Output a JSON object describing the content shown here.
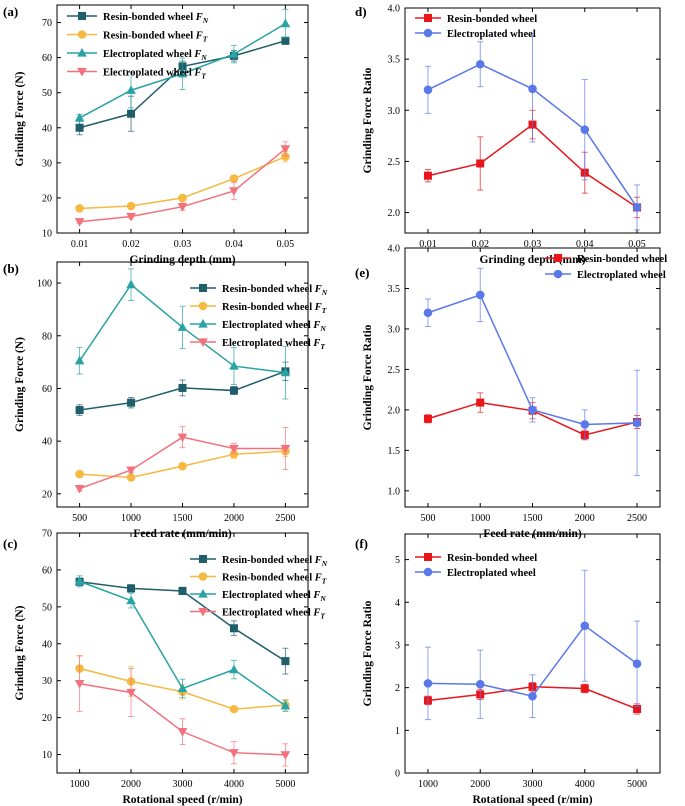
{
  "figure": {
    "colors": {
      "resin_normal": "#1f5f6b",
      "resin_tangential": "#f6b941",
      "electro_normal": "#29a3a3",
      "electro_tangential": "#f2717d",
      "resin_ratio": "#e8161b",
      "electro_ratio": "#5a78ea"
    }
  },
  "chart_data": [
    {
      "id": "a",
      "panel_label": "(a)",
      "type": "line",
      "xlabel": "Grinding depth (mm)",
      "ylabel": "Grinding Force (N)",
      "x": [
        0.01,
        0.02,
        0.03,
        0.04,
        0.05
      ],
      "x_tick_labels": [
        "0.01",
        "0.02",
        "0.03",
        "0.04",
        "0.05"
      ],
      "ylim": [
        10,
        75
      ],
      "y_ticks": [
        10,
        20,
        30,
        40,
        50,
        60,
        70
      ],
      "legend_position": "top-left",
      "series": [
        {
          "name": "Resin-bonded wheel",
          "sub": "N",
          "marker": "square",
          "color_key": "resin_normal",
          "values": [
            40,
            44,
            57.5,
            60.5,
            64.8
          ],
          "errors": [
            2,
            5,
            1.5,
            1.5,
            1
          ]
        },
        {
          "name": "Resin-bonded wheel",
          "sub": "T",
          "marker": "circle",
          "color_key": "resin_tangential",
          "values": [
            17,
            17.7,
            20,
            25.5,
            31.8
          ],
          "errors": [
            0.5,
            0.5,
            0.8,
            1,
            1.5
          ]
        },
        {
          "name": "Electroplated wheel",
          "sub": "N",
          "marker": "triangle-up",
          "color_key": "electro_normal",
          "values": [
            42.8,
            50.7,
            55.4,
            61,
            69.7
          ],
          "errors": [
            1,
            5,
            4.5,
            2.5,
            4
          ]
        },
        {
          "name": "Electroplated wheel",
          "sub": "T",
          "marker": "triangle-down",
          "color_key": "electro_tangential",
          "values": [
            13.2,
            14.7,
            17.5,
            22,
            34
          ],
          "errors": [
            0.5,
            0.5,
            1,
            2.5,
            2
          ]
        }
      ]
    },
    {
      "id": "b",
      "panel_label": "(b)",
      "type": "line",
      "xlabel": "Feed rate (mm/min)",
      "ylabel": "Grinding Force (N)",
      "x": [
        500,
        1000,
        1500,
        2000,
        2500
      ],
      "x_tick_labels": [
        "500",
        "1000",
        "1500",
        "2000",
        "2500"
      ],
      "ylim": [
        15,
        108
      ],
      "y_ticks": [
        20,
        40,
        60,
        80,
        100
      ],
      "legend_position": "top-right",
      "series": [
        {
          "name": "Resin-bonded wheel",
          "sub": "N",
          "marker": "square",
          "color_key": "resin_normal",
          "values": [
            51.8,
            54.6,
            60.2,
            59.2,
            66.5
          ],
          "errors": [
            2,
            2,
            3,
            1.5,
            3.5
          ]
        },
        {
          "name": "Resin-bonded wheel",
          "sub": "T",
          "marker": "circle",
          "color_key": "resin_tangential",
          "values": [
            27.5,
            26.2,
            30.5,
            35,
            36.2
          ],
          "errors": [
            1,
            1,
            1,
            1.5,
            2
          ]
        },
        {
          "name": "Electroplated wheel",
          "sub": "N",
          "marker": "triangle-up",
          "color_key": "electro_normal",
          "values": [
            70.5,
            99.4,
            83.2,
            68.5,
            66
          ],
          "errors": [
            5,
            6,
            8,
            7,
            10
          ]
        },
        {
          "name": "Electroplated wheel",
          "sub": "T",
          "marker": "triangle-down",
          "color_key": "electro_tangential",
          "values": [
            22,
            29,
            41.5,
            37.2,
            37.2
          ],
          "errors": [
            1,
            1,
            4,
            2,
            8
          ]
        }
      ]
    },
    {
      "id": "c",
      "panel_label": "(c)",
      "type": "line",
      "xlabel": "Rotational speed (r/min)",
      "ylabel": "Grinding Force (N)",
      "x": [
        1000,
        2000,
        3000,
        4000,
        5000
      ],
      "x_tick_labels": [
        "1000",
        "2000",
        "3000",
        "4000",
        "5000"
      ],
      "ylim": [
        5,
        70
      ],
      "y_ticks": [
        10,
        20,
        30,
        40,
        50,
        60,
        70
      ],
      "legend_position": "top-right",
      "series": [
        {
          "name": "Resin-bonded wheel",
          "sub": "N",
          "marker": "square",
          "color_key": "resin_normal",
          "values": [
            56.8,
            55,
            54.3,
            44.2,
            35.3
          ],
          "errors": [
            1,
            1,
            1,
            2,
            3.5
          ]
        },
        {
          "name": "Resin-bonded wheel",
          "sub": "T",
          "marker": "circle",
          "color_key": "resin_tangential",
          "values": [
            33.3,
            29.8,
            27,
            22.3,
            23.4
          ],
          "errors": [
            3.5,
            4,
            2,
            0.5,
            1.5
          ]
        },
        {
          "name": "Electroplated wheel",
          "sub": "N",
          "marker": "triangle-up",
          "color_key": "electro_normal",
          "values": [
            56.9,
            51.7,
            27.9,
            33,
            23.2
          ],
          "errors": [
            1.5,
            2,
            2.5,
            2.5,
            1.5
          ]
        },
        {
          "name": "Electroplated wheel",
          "sub": "T",
          "marker": "triangle-down",
          "color_key": "electro_tangential",
          "values": [
            29.2,
            26.8,
            16.2,
            10.5,
            9.9
          ],
          "errors": [
            7.5,
            6.5,
            3.5,
            3,
            3
          ]
        }
      ]
    },
    {
      "id": "d",
      "panel_label": "d)",
      "type": "line",
      "xlabel": "Grinding depth (mm)",
      "ylabel": "Grinding Force Ratio",
      "x": [
        0.01,
        0.02,
        0.03,
        0.04,
        0.05
      ],
      "x_tick_labels": [
        "0.01",
        "0.02",
        "0.03",
        "0.04",
        "0.05"
      ],
      "ylim": [
        1.8,
        4.0
      ],
      "y_ticks": [
        2.0,
        2.5,
        3.0,
        3.5,
        4.0
      ],
      "y_tick_labels": [
        "2.0",
        "2.5",
        "3.0",
        "3.5",
        "4.0"
      ],
      "legend_position": "top-left",
      "series": [
        {
          "name": "Resin-bonded wheel",
          "marker": "square",
          "color_key": "resin_ratio",
          "values": [
            2.36,
            2.48,
            2.86,
            2.39,
            2.05
          ],
          "errors": [
            0.06,
            0.26,
            0.14,
            0.2,
            0.1
          ]
        },
        {
          "name": "Electroplated wheel",
          "marker": "circle",
          "color_key": "electro_ratio",
          "values": [
            3.2,
            3.45,
            3.21,
            2.81,
            2.05
          ],
          "errors": [
            0.23,
            0.22,
            0.52,
            0.49,
            0.22
          ]
        }
      ]
    },
    {
      "id": "e",
      "panel_label": "(e)",
      "type": "line",
      "xlabel": "Feed rate (mm/min)",
      "ylabel": "Grinding Force Ratio",
      "x": [
        500,
        1000,
        1500,
        2000,
        2500
      ],
      "x_tick_labels": [
        "500",
        "1000",
        "1500",
        "2000",
        "2500"
      ],
      "ylim": [
        0.8,
        4.0
      ],
      "y_ticks": [
        1.0,
        1.5,
        2.0,
        2.5,
        3.0,
        3.5,
        4.0
      ],
      "y_tick_labels": [
        "1.0",
        "1.5",
        "2.0",
        "2.5",
        "3.0",
        "3.5",
        "4.0"
      ],
      "legend_position": "top-right",
      "series": [
        {
          "name": "Resin-bonded wheel",
          "marker": "square",
          "color_key": "resin_ratio",
          "values": [
            1.89,
            2.09,
            1.99,
            1.69,
            1.85
          ],
          "errors": [
            0.05,
            0.12,
            0.1,
            0.06,
            0.08
          ]
        },
        {
          "name": "Electroplated wheel",
          "marker": "circle",
          "color_key": "electro_ratio",
          "values": [
            3.2,
            3.42,
            2.0,
            1.82,
            1.84
          ],
          "errors": [
            0.17,
            0.33,
            0.15,
            0.18,
            0.65
          ]
        }
      ]
    },
    {
      "id": "f",
      "panel_label": "(f)",
      "type": "line",
      "xlabel": "Rotational speed (r/min)",
      "ylabel": "Grinding Force Ratio",
      "x": [
        1000,
        2000,
        3000,
        4000,
        5000
      ],
      "x_tick_labels": [
        "1000",
        "2000",
        "3000",
        "4000",
        "5000"
      ],
      "ylim": [
        0,
        5.6
      ],
      "y_ticks": [
        0,
        1,
        2,
        3,
        4,
        5
      ],
      "y_tick_labels": [
        "0",
        "1",
        "2",
        "3",
        "4",
        "5"
      ],
      "legend_position": "top-left",
      "series": [
        {
          "name": "Resin-bonded wheel",
          "marker": "square",
          "color_key": "resin_ratio",
          "values": [
            1.7,
            1.84,
            2.02,
            1.98,
            1.5
          ],
          "errors": [
            0.1,
            0.12,
            0.1,
            0.1,
            0.12
          ]
        },
        {
          "name": "Electroplated wheel",
          "marker": "circle",
          "color_key": "electro_ratio",
          "values": [
            2.1,
            2.08,
            1.8,
            3.45,
            2.56
          ],
          "errors": [
            0.85,
            0.8,
            0.5,
            1.3,
            1.0
          ]
        }
      ]
    }
  ]
}
